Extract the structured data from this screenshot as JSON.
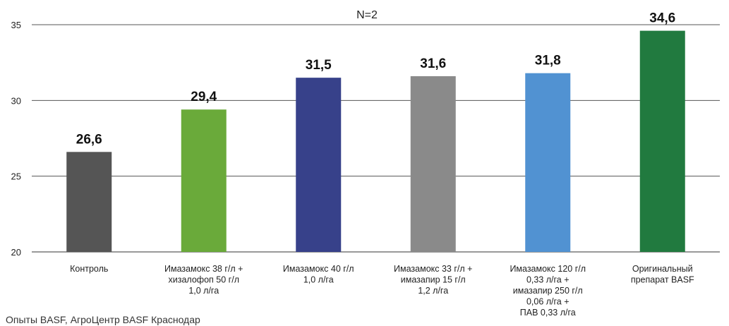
{
  "chart_data": {
    "type": "bar",
    "categories": [
      [
        "Контроль"
      ],
      [
        "Имазамокс 38 г/л +",
        "хизалофоп 50 г/л",
        "1,0 л/га"
      ],
      [
        "Имазамокс 40 г/л",
        "1,0 л/га"
      ],
      [
        "Имазамокс 33 г/л +",
        "имазапир 15 г/л",
        "1,2 л/га"
      ],
      [
        "Имазамокс 120 г/л",
        "0,33 л/га +",
        "имазапир 250 г/л",
        "0,06 л/га +",
        "ПАВ 0,33 л/га"
      ],
      [
        "Оригинальный",
        "препарат BASF"
      ]
    ],
    "values": [
      26.6,
      29.4,
      31.5,
      31.6,
      31.8,
      34.6
    ],
    "value_labels": [
      "26,6",
      "29,4",
      "31,5",
      "31,6",
      "31,8",
      "34,6"
    ],
    "colors": [
      "#555555",
      "#6aaa3a",
      "#37418a",
      "#8a8a8a",
      "#5192d2",
      "#217a3f"
    ],
    "ylim": [
      20,
      35
    ],
    "yticks": [
      20,
      25,
      30,
      35
    ],
    "grid": true,
    "annotation": "N=2",
    "title": "",
    "xlabel": "",
    "ylabel": ""
  },
  "footer": {
    "source": "Опыты BASF, АгроЦентр BASF Краснодар"
  }
}
